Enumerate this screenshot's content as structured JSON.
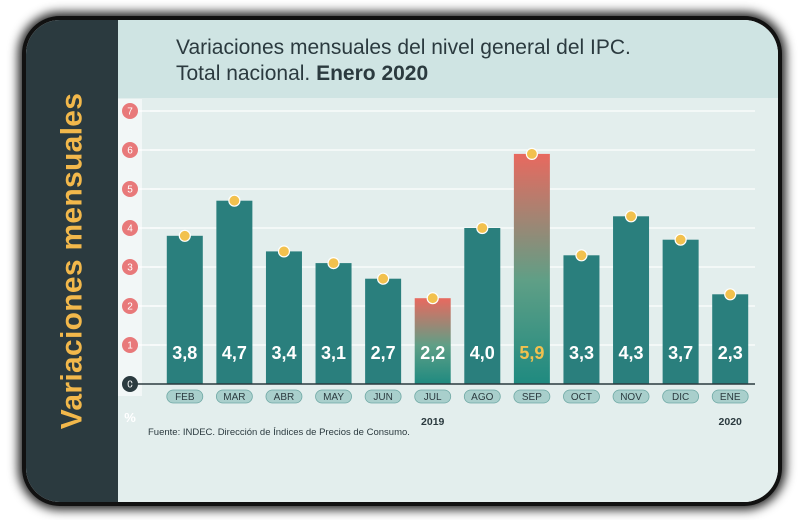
{
  "side_title": "Variaciones mensuales",
  "title": {
    "line1": "Variaciones mensuales del nivel general del IPC.",
    "line2_normal": "Total nacional. ",
    "line2_bold": "Enero 2020"
  },
  "source": "Fuente: INDEC. Dirección de Índices de Precios de Consumo.",
  "colors": {
    "bar": "#2a7f7d",
    "marker": "#f2c14e",
    "axis_tick": "#e8797a",
    "dark": "#2b3a3f",
    "highlight_top": "#e8695f",
    "highlight_bottom": "#1f8a80"
  },
  "chart_data": {
    "type": "bar",
    "title": "Variaciones mensuales del nivel general del IPC. Total nacional. Enero 2020",
    "ylabel": "Variaciones mensuales",
    "unit": "%",
    "ylim": [
      0,
      7
    ],
    "yticks": [
      0,
      1,
      2,
      3,
      4,
      5,
      6,
      7
    ],
    "categories": [
      "FEB",
      "MAR",
      "ABR",
      "MAY",
      "JUN",
      "JUL",
      "AGO",
      "SEP",
      "OCT",
      "NOV",
      "DIC",
      "ENE"
    ],
    "values": [
      3.8,
      4.7,
      3.4,
      3.1,
      2.7,
      2.2,
      4.0,
      5.9,
      3.3,
      4.3,
      3.7,
      2.3
    ],
    "value_labels": [
      "3,8",
      "4,7",
      "3,4",
      "3,1",
      "2,7",
      "2,2",
      "4,0",
      "5,9",
      "3,3",
      "4,3",
      "3,7",
      "2,3"
    ],
    "highlighted": [
      "JUL",
      "SEP"
    ],
    "year_labels": [
      {
        "label": "2019",
        "under": "JUL"
      },
      {
        "label": "2020",
        "under": "ENE"
      }
    ]
  }
}
